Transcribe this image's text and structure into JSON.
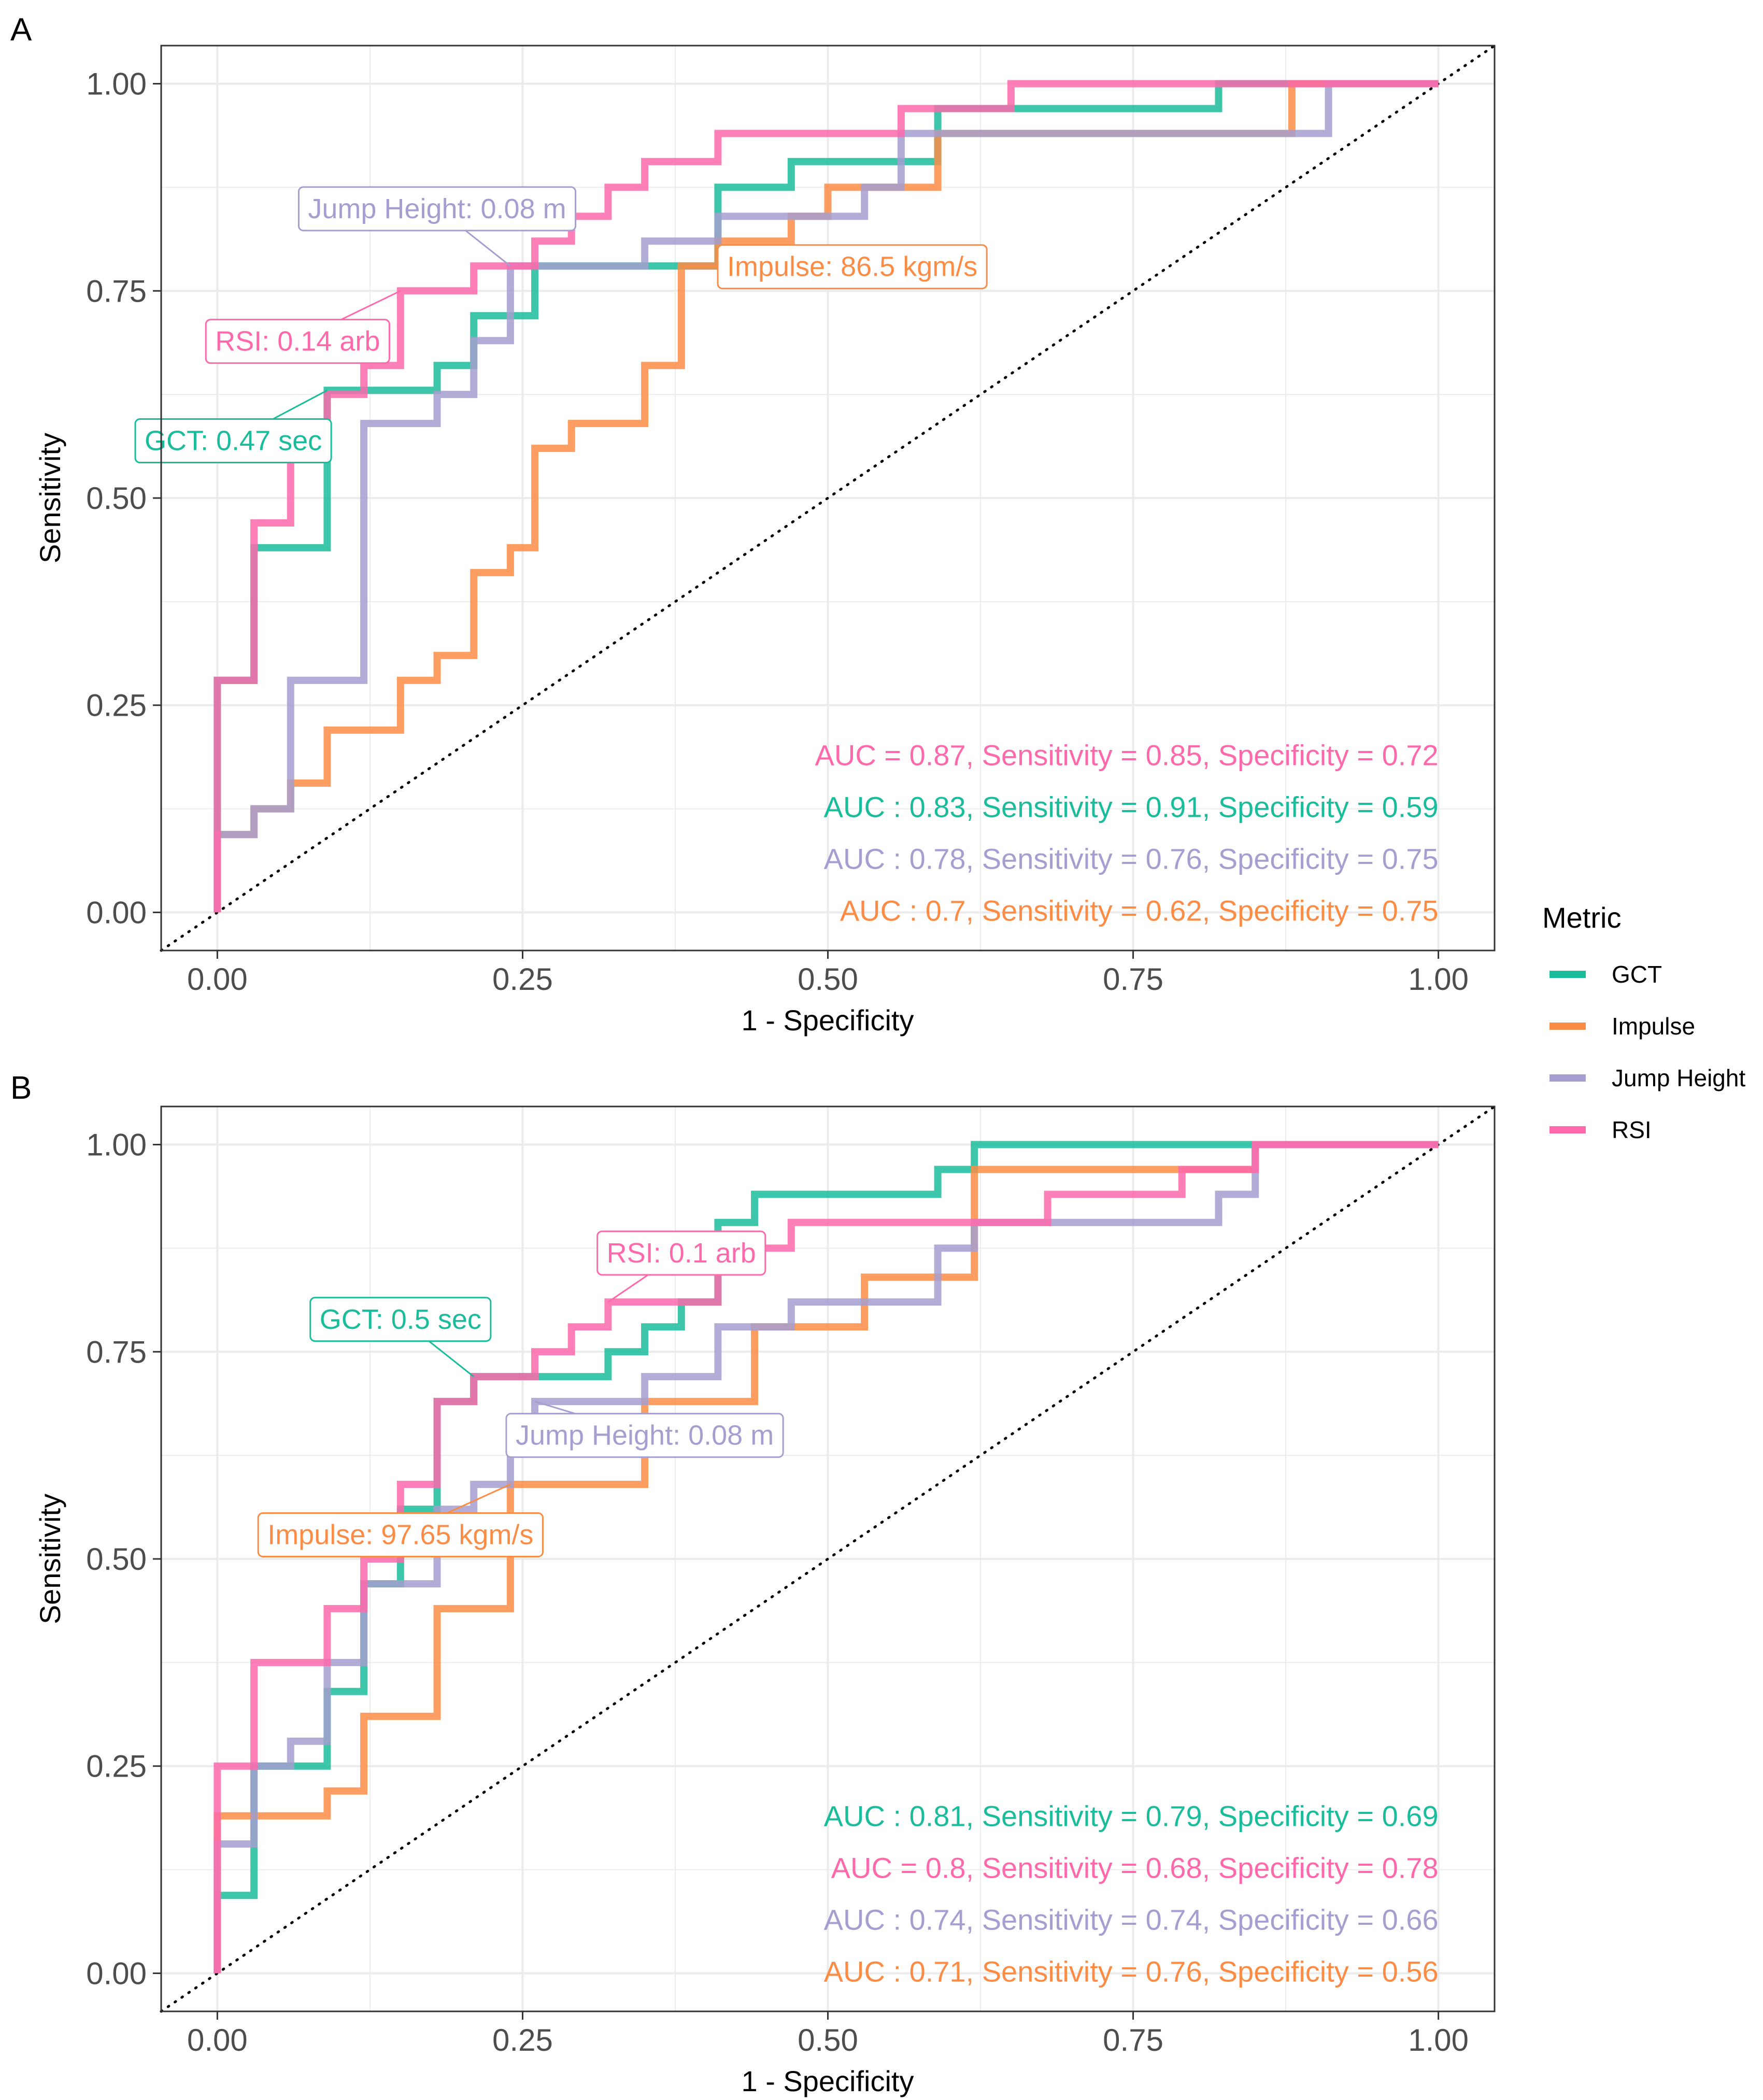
{
  "colors": {
    "GCT": "#1bbc9b",
    "Impulse": "#fb8c46",
    "Jump Height": "#a49fd0",
    "RSI": "#fd69aa",
    "grid": "#ebebeb",
    "axis_text": "#4d4d4d"
  },
  "legend": {
    "title": "Metric",
    "items": [
      {
        "name": "GCT",
        "color": "#1bbc9b"
      },
      {
        "name": "Impulse",
        "color": "#fb8c46"
      },
      {
        "name": "Jump Height",
        "color": "#a49fd0"
      },
      {
        "name": "RSI",
        "color": "#fd69aa"
      }
    ]
  },
  "chart_data": [
    {
      "panel": "A",
      "type": "line",
      "title": "",
      "xlabel": "1 - Specificity",
      "ylabel": "Sensitivity",
      "xlim": [
        0,
        1
      ],
      "ylim": [
        0,
        1
      ],
      "xticks": [
        "0.00",
        "0.25",
        "0.50",
        "0.75",
        "1.00"
      ],
      "yticks": [
        "0.00",
        "0.25",
        "0.50",
        "0.75",
        "1.00"
      ],
      "reference_line": "diagonal, dotted",
      "series": [
        {
          "name": "GCT",
          "x": [
            0,
            0,
            0.03,
            0.03,
            0.09,
            0.09,
            0.12,
            0.12,
            0.18,
            0.18,
            0.21,
            0.21,
            0.26,
            0.26,
            0.41,
            0.41,
            0.47,
            0.47,
            0.59,
            0.59,
            0.82,
            0.82,
            1.0
          ],
          "y": [
            0,
            0.28,
            0.28,
            0.44,
            0.44,
            0.63,
            0.63,
            0.63,
            0.63,
            0.66,
            0.66,
            0.72,
            0.72,
            0.78,
            0.78,
            0.875,
            0.875,
            0.906,
            0.906,
            0.97,
            0.97,
            1.0,
            1.0
          ]
        },
        {
          "name": "Impulse",
          "x": [
            0,
            0,
            0.03,
            0.03,
            0.06,
            0.06,
            0.09,
            0.09,
            0.15,
            0.15,
            0.18,
            0.18,
            0.21,
            0.21,
            0.24,
            0.24,
            0.26,
            0.26,
            0.29,
            0.29,
            0.35,
            0.35,
            0.38,
            0.38,
            0.41,
            0.41,
            0.47,
            0.47,
            0.5,
            0.5,
            0.56,
            0.56,
            0.59,
            0.59,
            0.88,
            0.88,
            1.0
          ],
          "y": [
            0,
            0.094,
            0.094,
            0.125,
            0.125,
            0.156,
            0.156,
            0.22,
            0.22,
            0.28,
            0.28,
            0.31,
            0.31,
            0.41,
            0.41,
            0.44,
            0.44,
            0.56,
            0.56,
            0.59,
            0.59,
            0.66,
            0.66,
            0.78,
            0.78,
            0.81,
            0.81,
            0.84,
            0.84,
            0.875,
            0.875,
            0.875,
            0.875,
            0.94,
            0.94,
            1.0,
            1.0
          ]
        },
        {
          "name": "Jump Height",
          "x": [
            0,
            0,
            0.03,
            0.03,
            0.06,
            0.06,
            0.12,
            0.12,
            0.18,
            0.18,
            0.21,
            0.21,
            0.24,
            0.24,
            0.35,
            0.35,
            0.41,
            0.41,
            0.53,
            0.53,
            0.56,
            0.56,
            0.91,
            0.91,
            1.0
          ],
          "y": [
            0,
            0.094,
            0.094,
            0.125,
            0.125,
            0.28,
            0.28,
            0.59,
            0.59,
            0.625,
            0.625,
            0.69,
            0.69,
            0.78,
            0.78,
            0.81,
            0.81,
            0.84,
            0.84,
            0.875,
            0.875,
            0.94,
            0.94,
            1.0,
            1.0
          ]
        },
        {
          "name": "RSI",
          "x": [
            0,
            0,
            0.03,
            0.03,
            0.06,
            0.06,
            0.09,
            0.09,
            0.12,
            0.12,
            0.15,
            0.15,
            0.21,
            0.21,
            0.26,
            0.26,
            0.29,
            0.29,
            0.32,
            0.32,
            0.35,
            0.35,
            0.41,
            0.41,
            0.56,
            0.56,
            0.65,
            0.65,
            1.0
          ],
          "y": [
            0,
            0.28,
            0.28,
            0.47,
            0.47,
            0.56,
            0.56,
            0.625,
            0.625,
            0.66,
            0.66,
            0.75,
            0.75,
            0.78,
            0.78,
            0.81,
            0.81,
            0.84,
            0.84,
            0.875,
            0.875,
            0.906,
            0.906,
            0.94,
            0.94,
            0.97,
            0.97,
            1.0,
            1.0
          ]
        }
      ],
      "thresholds": [
        {
          "metric": "GCT",
          "label": "GCT: 0.47 sec",
          "point": [
            0.09,
            0.63
          ],
          "anchor": [
            0.03,
            0.57
          ]
        },
        {
          "metric": "RSI",
          "label": "RSI: 0.14 arb",
          "point": [
            0.15,
            0.75
          ],
          "anchor": [
            0.07,
            0.69
          ]
        },
        {
          "metric": "Jump Height",
          "label": "Jump Height: 0.08 m",
          "point": [
            0.24,
            0.78
          ],
          "anchor": [
            0.18,
            0.85
          ]
        },
        {
          "metric": "Impulse",
          "label": "Impulse: 86.5 kgm/s",
          "point": [
            0.38,
            0.78
          ],
          "anchor": [
            0.52,
            0.78
          ]
        }
      ],
      "annotations": [
        {
          "metric": "RSI",
          "text": "AUC = 0.87, Sensitivity = 0.85, Specificity = 0.72"
        },
        {
          "metric": "GCT",
          "text": "AUC : 0.83, Sensitivity = 0.91, Specificity = 0.59"
        },
        {
          "metric": "Jump Height",
          "text": "AUC : 0.78, Sensitivity = 0.76, Specificity = 0.75"
        },
        {
          "metric": "Impulse",
          "text": "AUC : 0.7, Sensitivity = 0.62, Specificity = 0.75"
        }
      ]
    },
    {
      "panel": "B",
      "type": "line",
      "title": "",
      "xlabel": "1 - Specificity",
      "ylabel": "Sensitivity",
      "xlim": [
        0,
        1
      ],
      "ylim": [
        0,
        1
      ],
      "xticks": [
        "0.00",
        "0.25",
        "0.50",
        "0.75",
        "1.00"
      ],
      "yticks": [
        "0.00",
        "0.25",
        "0.50",
        "0.75",
        "1.00"
      ],
      "reference_line": "diagonal, dotted",
      "series": [
        {
          "name": "GCT",
          "x": [
            0,
            0,
            0.03,
            0.03,
            0.09,
            0.09,
            0.12,
            0.12,
            0.15,
            0.15,
            0.18,
            0.18,
            0.21,
            0.21,
            0.32,
            0.32,
            0.35,
            0.35,
            0.38,
            0.38,
            0.41,
            0.41,
            0.44,
            0.44,
            0.59,
            0.59,
            0.62,
            0.62,
            1.0
          ],
          "y": [
            0,
            0.094,
            0.094,
            0.25,
            0.25,
            0.34,
            0.34,
            0.47,
            0.47,
            0.56,
            0.56,
            0.69,
            0.69,
            0.72,
            0.72,
            0.75,
            0.75,
            0.78,
            0.78,
            0.81,
            0.81,
            0.906,
            0.906,
            0.94,
            0.94,
            0.97,
            0.97,
            1.0,
            1.0
          ]
        },
        {
          "name": "Impulse",
          "x": [
            0,
            0,
            0.09,
            0.09,
            0.12,
            0.12,
            0.18,
            0.18,
            0.24,
            0.24,
            0.26,
            0.26,
            0.35,
            0.35,
            0.38,
            0.38,
            0.44,
            0.44,
            0.47,
            0.47,
            0.53,
            0.53,
            0.59,
            0.59,
            0.62,
            0.62,
            0.85,
            0.85,
            1.0
          ],
          "y": [
            0,
            0.19,
            0.19,
            0.22,
            0.22,
            0.31,
            0.31,
            0.44,
            0.44,
            0.59,
            0.59,
            0.59,
            0.59,
            0.69,
            0.69,
            0.69,
            0.69,
            0.78,
            0.78,
            0.78,
            0.78,
            0.84,
            0.84,
            0.84,
            0.84,
            0.97,
            0.97,
            1.0,
            1.0
          ]
        },
        {
          "name": "Jump Height",
          "x": [
            0,
            0,
            0.03,
            0.03,
            0.06,
            0.06,
            0.09,
            0.09,
            0.12,
            0.12,
            0.15,
            0.15,
            0.18,
            0.18,
            0.21,
            0.21,
            0.24,
            0.24,
            0.26,
            0.26,
            0.35,
            0.35,
            0.41,
            0.41,
            0.47,
            0.47,
            0.59,
            0.59,
            0.62,
            0.62,
            0.82,
            0.82,
            0.85,
            0.85,
            1.0
          ],
          "y": [
            0,
            0.156,
            0.156,
            0.25,
            0.25,
            0.28,
            0.28,
            0.375,
            0.375,
            0.47,
            0.47,
            0.47,
            0.47,
            0.56,
            0.56,
            0.59,
            0.59,
            0.66,
            0.66,
            0.69,
            0.69,
            0.72,
            0.72,
            0.78,
            0.78,
            0.81,
            0.81,
            0.875,
            0.875,
            0.906,
            0.906,
            0.94,
            0.94,
            1.0,
            1.0
          ]
        },
        {
          "name": "RSI",
          "x": [
            0,
            0,
            0.03,
            0.03,
            0.09,
            0.09,
            0.12,
            0.12,
            0.15,
            0.15,
            0.18,
            0.18,
            0.21,
            0.21,
            0.26,
            0.26,
            0.29,
            0.29,
            0.32,
            0.32,
            0.41,
            0.41,
            0.47,
            0.47,
            0.68,
            0.68,
            0.79,
            0.79,
            0.85,
            0.85,
            1.0
          ],
          "y": [
            0,
            0.25,
            0.25,
            0.375,
            0.375,
            0.44,
            0.44,
            0.5,
            0.5,
            0.59,
            0.59,
            0.69,
            0.69,
            0.72,
            0.72,
            0.75,
            0.75,
            0.78,
            0.78,
            0.81,
            0.81,
            0.875,
            0.875,
            0.906,
            0.906,
            0.94,
            0.94,
            0.97,
            0.97,
            1.0,
            1.0
          ]
        }
      ],
      "thresholds": [
        {
          "metric": "RSI",
          "label": "RSI: 0.1 arb",
          "point": [
            0.32,
            0.81
          ],
          "anchor": [
            0.38,
            0.87
          ]
        },
        {
          "metric": "GCT",
          "label": "GCT: 0.5 sec",
          "point": [
            0.21,
            0.72
          ],
          "anchor": [
            0.15,
            0.79
          ]
        },
        {
          "metric": "Jump Height",
          "label": "Jump Height: 0.08 m",
          "point": [
            0.26,
            0.69
          ],
          "anchor": [
            0.35,
            0.65
          ]
        },
        {
          "metric": "Impulse",
          "label": "Impulse: 97.65 kgm/s",
          "point": [
            0.24,
            0.59
          ],
          "anchor": [
            0.15,
            0.53
          ]
        }
      ],
      "annotations": [
        {
          "metric": "GCT",
          "text": "AUC : 0.81, Sensitivity = 0.79, Specificity = 0.69"
        },
        {
          "metric": "RSI",
          "text": "AUC = 0.8, Sensitivity = 0.68, Specificity = 0.78"
        },
        {
          "metric": "Jump Height",
          "text": "AUC : 0.74, Sensitivity = 0.74, Specificity = 0.66"
        },
        {
          "metric": "Impulse",
          "text": "AUC : 0.71, Sensitivity = 0.76, Specificity = 0.56"
        }
      ]
    }
  ]
}
